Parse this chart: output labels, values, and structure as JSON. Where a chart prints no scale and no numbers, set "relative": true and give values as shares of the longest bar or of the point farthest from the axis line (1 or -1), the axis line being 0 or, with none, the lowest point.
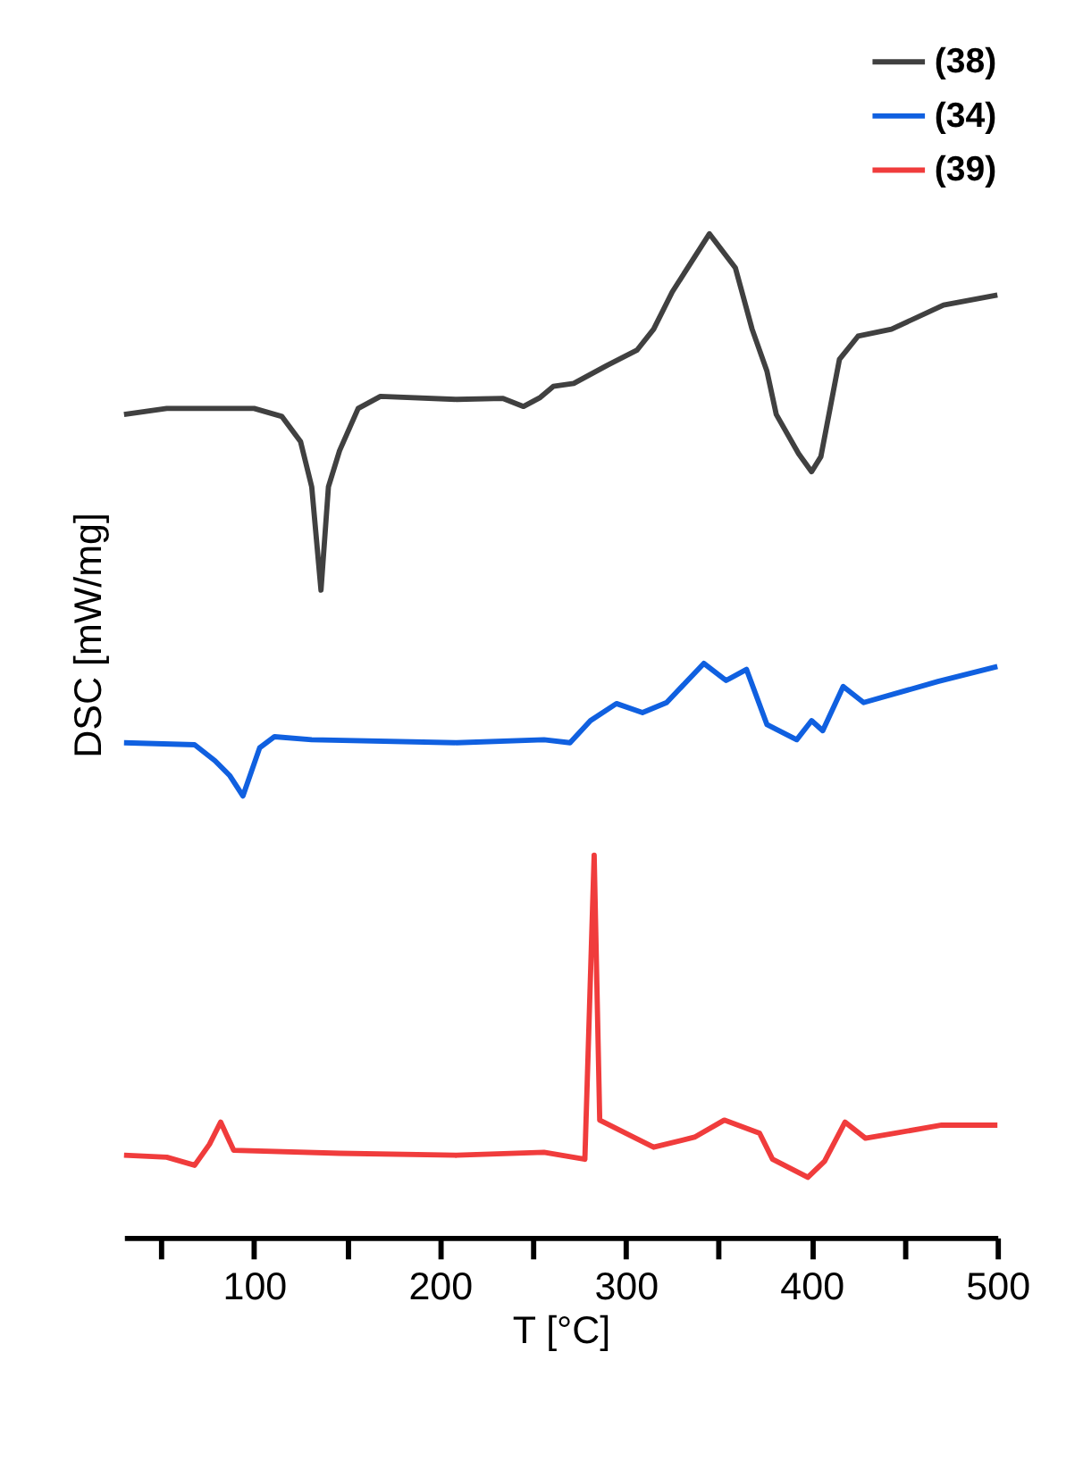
{
  "chart_data": {
    "type": "line",
    "relative": true,
    "xlabel": "T [°C]",
    "ylabel": "DSC [mW/mg]",
    "xlim": [
      30,
      500
    ],
    "xticks": [
      {
        "value": 50,
        "label": null
      },
      100,
      {
        "value": 150,
        "label": null
      },
      200,
      {
        "value": 250,
        "label": null
      },
      300,
      {
        "value": 350,
        "label": null
      },
      400,
      {
        "value": 450,
        "label": null
      },
      500
    ],
    "legend": "top right",
    "grid": false,
    "marker": "none",
    "line_style": "solid",
    "series": [
      {
        "name": "(38)",
        "color": "#404040",
        "x": [
          30,
          53,
          100,
          115,
          125,
          131,
          136,
          140,
          146,
          156,
          168,
          209,
          234,
          245,
          254,
          261,
          272,
          290,
          306,
          315,
          325,
          345,
          359,
          368,
          376,
          381,
          393,
          400,
          405,
          415,
          425,
          443,
          471,
          500
        ],
        "values": [
          0.82,
          0.826,
          0.826,
          0.818,
          0.793,
          0.748,
          0.645,
          0.748,
          0.784,
          0.826,
          0.838,
          0.835,
          0.836,
          0.828,
          0.837,
          0.848,
          0.851,
          0.869,
          0.884,
          0.905,
          0.942,
          1.0,
          0.966,
          0.905,
          0.863,
          0.82,
          0.781,
          0.763,
          0.778,
          0.875,
          0.898,
          0.905,
          0.929,
          0.939
        ]
      },
      {
        "name": "(34)",
        "color": "#1060e0",
        "x": [
          30,
          68,
          79,
          87,
          94,
          103,
          111,
          131,
          209,
          256,
          270,
          281,
          295,
          309,
          322,
          342,
          354,
          365,
          376,
          392,
          400,
          406,
          417,
          428,
          468,
          500
        ],
        "values": [
          0.493,
          0.491,
          0.475,
          0.46,
          0.44,
          0.488,
          0.499,
          0.496,
          0.493,
          0.496,
          0.493,
          0.515,
          0.532,
          0.523,
          0.533,
          0.572,
          0.555,
          0.566,
          0.511,
          0.496,
          0.515,
          0.505,
          0.549,
          0.533,
          0.554,
          0.569
        ]
      },
      {
        "name": "(39)",
        "color": "#f03c3c",
        "x": [
          30,
          53,
          68,
          76,
          82,
          89,
          146,
          209,
          256,
          278,
          283,
          286,
          315,
          337,
          353,
          372,
          379,
          398,
          407,
          418,
          429,
          470,
          500
        ],
        "values": [
          0.082,
          0.08,
          0.072,
          0.093,
          0.115,
          0.087,
          0.084,
          0.082,
          0.085,
          0.078,
          0.381,
          0.117,
          0.09,
          0.1,
          0.117,
          0.104,
          0.078,
          0.06,
          0.076,
          0.115,
          0.099,
          0.112,
          0.112
        ]
      }
    ]
  }
}
